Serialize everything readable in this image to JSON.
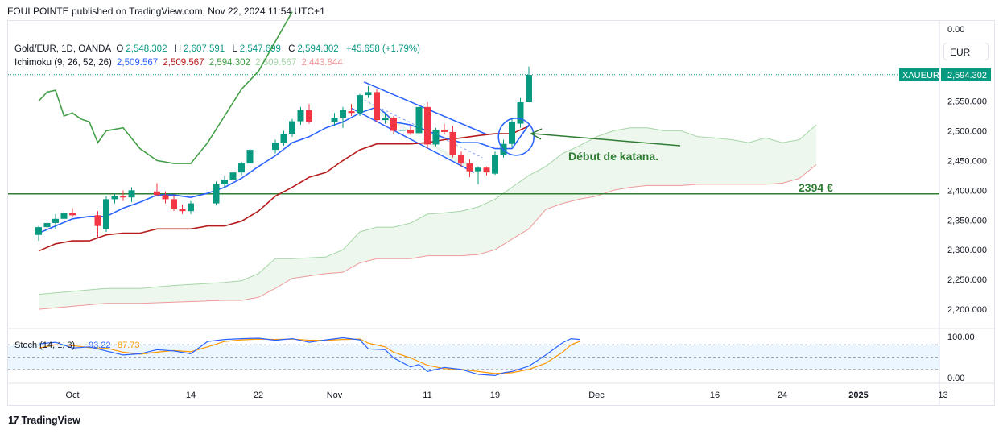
{
  "header": {
    "publisher_line": "FOULPOINTE published on TradingView.com, Nov 22, 2024 11:54 UTC+1"
  },
  "footer": {
    "logo_mark": "17",
    "brand": "TradingView"
  },
  "currency_button": "EUR",
  "legend": {
    "symbol_line": "Gold/EUR, 1D, OANDA",
    "ohlc": {
      "o_label": "O",
      "o": "2,548.302",
      "h_label": "H",
      "h": "2,607.591",
      "l_label": "L",
      "l": "2,547.699",
      "c_label": "C",
      "c": "2,594.302",
      "change": "+45.658 (+1.79%)"
    },
    "ichimoku_label": "Ichimoku (9, 26, 52, 26)",
    "ichimoku_values": [
      "2,509.567",
      "2,509.567",
      "2,594.302",
      "2,509.567",
      "2,443.844"
    ],
    "stoch_label": "Stoch (14, 1, 3)",
    "stoch_values": [
      "93.22",
      "87.73"
    ]
  },
  "colors": {
    "up": "#089981",
    "down": "#f23645",
    "tenkan": "#2962ff",
    "kijun": "#b71c1c",
    "chikou": "#43a047",
    "senkou_b": "#ef9a9a",
    "cloud": "#e8f5e9",
    "support": "#2e7d32",
    "stoch_k": "#2962ff",
    "stoch_d": "#ff9800",
    "annotation": "#2e7d32"
  },
  "annotations": {
    "katana_text": "Début de katana.",
    "support_text": "2394 €"
  },
  "chart_data": {
    "type": "candlestick",
    "symbol": "XAUEUR",
    "last_price_label": "XAUEUR",
    "last_price": "2,594.302",
    "y_ticks": [
      "2,550.000",
      "2,500.000",
      "2,450.000",
      "2,400.000",
      "2,350.000",
      "2,300.000",
      "2,250.000",
      "2,200.000"
    ],
    "y_top_label": "0.00",
    "y_tick_values": [
      2550,
      2500,
      2450,
      2400,
      2350,
      2300,
      2250,
      2200
    ],
    "x_ticks": [
      "Oct",
      "14",
      "22",
      "Nov",
      "11",
      "19",
      "Dec",
      "16",
      "24",
      "2025",
      "13"
    ],
    "x_tick_days": [
      18,
      32,
      40,
      49,
      60,
      68,
      80,
      94,
      102,
      111,
      121
    ],
    "support_level": 2394,
    "candles": [
      {
        "d": 14,
        "o": 2325,
        "h": 2340,
        "l": 2315,
        "c": 2338
      },
      {
        "d": 15,
        "o": 2338,
        "h": 2350,
        "l": 2330,
        "c": 2345
      },
      {
        "d": 16,
        "o": 2345,
        "h": 2360,
        "l": 2335,
        "c": 2352
      },
      {
        "d": 17,
        "o": 2352,
        "h": 2365,
        "l": 2348,
        "c": 2362
      },
      {
        "d": 18,
        "o": 2362,
        "h": 2370,
        "l": 2355,
        "c": 2358
      },
      {
        "d": 21,
        "o": 2358,
        "h": 2365,
        "l": 2320,
        "c": 2340
      },
      {
        "d": 22,
        "o": 2335,
        "h": 2390,
        "l": 2330,
        "c": 2385
      },
      {
        "d": 23,
        "o": 2385,
        "h": 2395,
        "l": 2378,
        "c": 2390
      },
      {
        "d": 24,
        "o": 2390,
        "h": 2400,
        "l": 2382,
        "c": 2388
      },
      {
        "d": 25,
        "o": 2388,
        "h": 2405,
        "l": 2380,
        "c": 2400
      },
      {
        "d": 28,
        "o": 2398,
        "h": 2412,
        "l": 2390,
        "c": 2392
      },
      {
        "d": 29,
        "o": 2392,
        "h": 2398,
        "l": 2378,
        "c": 2385
      },
      {
        "d": 30,
        "o": 2385,
        "h": 2392,
        "l": 2365,
        "c": 2368
      },
      {
        "d": 31,
        "o": 2368,
        "h": 2376,
        "l": 2360,
        "c": 2365
      },
      {
        "d": 32,
        "o": 2365,
        "h": 2382,
        "l": 2360,
        "c": 2378
      },
      {
        "d": 35,
        "o": 2378,
        "h": 2415,
        "l": 2375,
        "c": 2410
      },
      {
        "d": 36,
        "o": 2410,
        "h": 2425,
        "l": 2405,
        "c": 2418
      },
      {
        "d": 37,
        "o": 2418,
        "h": 2435,
        "l": 2410,
        "c": 2430
      },
      {
        "d": 38,
        "o": 2430,
        "h": 2448,
        "l": 2425,
        "c": 2445
      },
      {
        "d": 39,
        "o": 2445,
        "h": 2470,
        "l": 2442,
        "c": 2468
      },
      {
        "d": 42,
        "o": 2468,
        "h": 2485,
        "l": 2462,
        "c": 2480
      },
      {
        "d": 43,
        "o": 2480,
        "h": 2500,
        "l": 2475,
        "c": 2495
      },
      {
        "d": 44,
        "o": 2495,
        "h": 2520,
        "l": 2490,
        "c": 2516
      },
      {
        "d": 45,
        "o": 2516,
        "h": 2540,
        "l": 2510,
        "c": 2535
      },
      {
        "d": 46,
        "o": 2535,
        "h": 2545,
        "l": 2512,
        "c": 2515
      },
      {
        "d": 49,
        "o": 2515,
        "h": 2530,
        "l": 2508,
        "c": 2522
      },
      {
        "d": 50,
        "o": 2522,
        "h": 2540,
        "l": 2505,
        "c": 2535
      },
      {
        "d": 51,
        "o": 2533,
        "h": 2545,
        "l": 2525,
        "c": 2530
      },
      {
        "d": 52,
        "o": 2530,
        "h": 2562,
        "l": 2525,
        "c": 2560
      },
      {
        "d": 53,
        "o": 2560,
        "h": 2575,
        "l": 2555,
        "c": 2565
      },
      {
        "d": 54,
        "o": 2565,
        "h": 2570,
        "l": 2515,
        "c": 2518
      },
      {
        "d": 55,
        "o": 2518,
        "h": 2530,
        "l": 2512,
        "c": 2522
      },
      {
        "d": 56,
        "o": 2522,
        "h": 2525,
        "l": 2495,
        "c": 2500
      },
      {
        "d": 57,
        "o": 2500,
        "h": 2510,
        "l": 2495,
        "c": 2502
      },
      {
        "d": 58,
        "o": 2502,
        "h": 2508,
        "l": 2493,
        "c": 2496
      },
      {
        "d": 59,
        "o": 2496,
        "h": 2545,
        "l": 2490,
        "c": 2540
      },
      {
        "d": 60,
        "o": 2540,
        "h": 2548,
        "l": 2470,
        "c": 2477
      },
      {
        "d": 61,
        "o": 2477,
        "h": 2505,
        "l": 2474,
        "c": 2502
      },
      {
        "d": 62,
        "o": 2502,
        "h": 2512,
        "l": 2495,
        "c": 2498
      },
      {
        "d": 63,
        "o": 2498,
        "h": 2508,
        "l": 2455,
        "c": 2460
      },
      {
        "d": 64,
        "o": 2460,
        "h": 2465,
        "l": 2440,
        "c": 2445
      },
      {
        "d": 65,
        "o": 2445,
        "h": 2452,
        "l": 2422,
        "c": 2432
      },
      {
        "d": 66,
        "o": 2432,
        "h": 2440,
        "l": 2410,
        "c": 2438
      },
      {
        "d": 67,
        "o": 2438,
        "h": 2440,
        "l": 2425,
        "c": 2430
      },
      {
        "d": 68,
        "o": 2428,
        "h": 2465,
        "l": 2426,
        "c": 2460
      },
      {
        "d": 69,
        "o": 2460,
        "h": 2485,
        "l": 2455,
        "c": 2478
      },
      {
        "d": 70,
        "o": 2478,
        "h": 2520,
        "l": 2472,
        "c": 2515
      },
      {
        "d": 71,
        "o": 2512,
        "h": 2555,
        "l": 2505,
        "c": 2548
      },
      {
        "d": 72,
        "o": 2548,
        "h": 2608,
        "l": 2548,
        "c": 2594
      }
    ],
    "tenkan": [
      [
        14,
        2328
      ],
      [
        16,
        2340
      ],
      [
        18,
        2352
      ],
      [
        20,
        2356
      ],
      [
        22,
        2356
      ],
      [
        24,
        2370
      ],
      [
        26,
        2380
      ],
      [
        28,
        2392
      ],
      [
        30,
        2392
      ],
      [
        32,
        2388
      ],
      [
        34,
        2395
      ],
      [
        36,
        2405
      ],
      [
        38,
        2420
      ],
      [
        40,
        2440
      ],
      [
        42,
        2458
      ],
      [
        44,
        2480
      ],
      [
        46,
        2490
      ],
      [
        48,
        2505
      ],
      [
        50,
        2515
      ],
      [
        52,
        2530
      ],
      [
        54,
        2540
      ],
      [
        55,
        2530
      ],
      [
        56,
        2515
      ],
      [
        58,
        2510
      ],
      [
        60,
        2500
      ],
      [
        62,
        2488
      ],
      [
        64,
        2480
      ],
      [
        66,
        2480
      ],
      [
        68,
        2470
      ],
      [
        70,
        2470
      ],
      [
        71,
        2490
      ],
      [
        72,
        2510
      ]
    ],
    "kijun": [
      [
        14,
        2298
      ],
      [
        16,
        2310
      ],
      [
        18,
        2315
      ],
      [
        20,
        2315
      ],
      [
        22,
        2325
      ],
      [
        24,
        2328
      ],
      [
        26,
        2328
      ],
      [
        28,
        2335
      ],
      [
        30,
        2335
      ],
      [
        32,
        2335
      ],
      [
        34,
        2340
      ],
      [
        36,
        2340
      ],
      [
        38,
        2348
      ],
      [
        40,
        2365
      ],
      [
        42,
        2390
      ],
      [
        44,
        2405
      ],
      [
        46,
        2422
      ],
      [
        48,
        2430
      ],
      [
        50,
        2450
      ],
      [
        52,
        2468
      ],
      [
        54,
        2478
      ],
      [
        56,
        2478
      ],
      [
        58,
        2478
      ],
      [
        60,
        2480
      ],
      [
        62,
        2485
      ],
      [
        64,
        2488
      ],
      [
        66,
        2492
      ],
      [
        68,
        2495
      ],
      [
        70,
        2495
      ],
      [
        72,
        2508
      ]
    ],
    "chikou": [
      [
        14,
        2550
      ],
      [
        15,
        2565
      ],
      [
        16,
        2568
      ],
      [
        17,
        2525
      ],
      [
        18,
        2530
      ],
      [
        19,
        2520
      ],
      [
        20,
        2515
      ],
      [
        21,
        2480
      ],
      [
        22,
        2500
      ],
      [
        24,
        2505
      ],
      [
        26,
        2470
      ],
      [
        28,
        2450
      ],
      [
        30,
        2445
      ],
      [
        32,
        2445
      ],
      [
        34,
        2480
      ],
      [
        36,
        2525
      ],
      [
        38,
        2570
      ],
      [
        40,
        2600
      ],
      [
        42,
        2650
      ],
      [
        44,
        2700
      ]
    ],
    "senkou_a": [
      [
        14,
        2225
      ],
      [
        18,
        2230
      ],
      [
        22,
        2235
      ],
      [
        26,
        2235
      ],
      [
        30,
        2240
      ],
      [
        36,
        2245
      ],
      [
        38,
        2248
      ],
      [
        40,
        2260
      ],
      [
        42,
        2285
      ],
      [
        44,
        2285
      ],
      [
        48,
        2288
      ],
      [
        50,
        2300
      ],
      [
        52,
        2330
      ],
      [
        54,
        2338
      ],
      [
        56,
        2338
      ],
      [
        58,
        2345
      ],
      [
        60,
        2360
      ],
      [
        62,
        2362
      ],
      [
        64,
        2365
      ],
      [
        66,
        2372
      ],
      [
        68,
        2385
      ],
      [
        70,
        2405
      ],
      [
        72,
        2425
      ],
      [
        74,
        2440
      ],
      [
        76,
        2462
      ],
      [
        78,
        2475
      ],
      [
        80,
        2490
      ],
      [
        82,
        2500
      ],
      [
        84,
        2505
      ],
      [
        86,
        2505
      ],
      [
        88,
        2500
      ],
      [
        90,
        2500
      ],
      [
        92,
        2490
      ],
      [
        94,
        2488
      ],
      [
        96,
        2485
      ],
      [
        98,
        2480
      ],
      [
        100,
        2488
      ],
      [
        102,
        2480
      ],
      [
        104,
        2485
      ],
      [
        106,
        2510
      ]
    ],
    "senkou_b": [
      [
        14,
        2200
      ],
      [
        18,
        2205
      ],
      [
        22,
        2210
      ],
      [
        26,
        2210
      ],
      [
        30,
        2212
      ],
      [
        36,
        2215
      ],
      [
        38,
        2215
      ],
      [
        40,
        2220
      ],
      [
        42,
        2235
      ],
      [
        44,
        2252
      ],
      [
        48,
        2260
      ],
      [
        50,
        2262
      ],
      [
        52,
        2278
      ],
      [
        54,
        2285
      ],
      [
        56,
        2285
      ],
      [
        58,
        2285
      ],
      [
        60,
        2290
      ],
      [
        62,
        2290
      ],
      [
        64,
        2290
      ],
      [
        66,
        2292
      ],
      [
        68,
        2300
      ],
      [
        70,
        2318
      ],
      [
        72,
        2335
      ],
      [
        74,
        2368
      ],
      [
        76,
        2378
      ],
      [
        78,
        2385
      ],
      [
        80,
        2390
      ],
      [
        82,
        2400
      ],
      [
        84,
        2405
      ],
      [
        86,
        2408
      ],
      [
        88,
        2408
      ],
      [
        90,
        2408
      ],
      [
        92,
        2410
      ],
      [
        94,
        2410
      ],
      [
        96,
        2410
      ],
      [
        98,
        2410
      ],
      [
        100,
        2410
      ],
      [
        102,
        2412
      ],
      [
        104,
        2420
      ],
      [
        106,
        2443
      ]
    ],
    "stoch": {
      "upper_band": 80,
      "lower_band": 20,
      "mid_band": 50,
      "y_ticks": [
        "100.00",
        "0.00"
      ],
      "k": [
        [
          14,
          82
        ],
        [
          16,
          86
        ],
        [
          18,
          72
        ],
        [
          20,
          75
        ],
        [
          22,
          65
        ],
        [
          24,
          55
        ],
        [
          26,
          58
        ],
        [
          28,
          68
        ],
        [
          30,
          65
        ],
        [
          32,
          58
        ],
        [
          34,
          88
        ],
        [
          36,
          93
        ],
        [
          38,
          95
        ],
        [
          40,
          96
        ],
        [
          42,
          91
        ],
        [
          44,
          95
        ],
        [
          46,
          86
        ],
        [
          48,
          92
        ],
        [
          50,
          97
        ],
        [
          52,
          92
        ],
        [
          53,
          70
        ],
        [
          55,
          68
        ],
        [
          56,
          48
        ],
        [
          58,
          26
        ],
        [
          59,
          32
        ],
        [
          60,
          15
        ],
        [
          62,
          25
        ],
        [
          64,
          20
        ],
        [
          66,
          8
        ],
        [
          68,
          5
        ],
        [
          69,
          12
        ],
        [
          70,
          15
        ],
        [
          72,
          28
        ],
        [
          74,
          55
        ],
        [
          76,
          85
        ],
        [
          77,
          95
        ],
        [
          78,
          93
        ]
      ],
      "d": [
        [
          14,
          72
        ],
        [
          16,
          80
        ],
        [
          18,
          78
        ],
        [
          20,
          73
        ],
        [
          22,
          72
        ],
        [
          24,
          62
        ],
        [
          26,
          57
        ],
        [
          28,
          62
        ],
        [
          30,
          66
        ],
        [
          32,
          63
        ],
        [
          34,
          75
        ],
        [
          36,
          88
        ],
        [
          38,
          92
        ],
        [
          40,
          94
        ],
        [
          42,
          93
        ],
        [
          44,
          94
        ],
        [
          46,
          91
        ],
        [
          48,
          91
        ],
        [
          50,
          93
        ],
        [
          52,
          94
        ],
        [
          53,
          84
        ],
        [
          55,
          75
        ],
        [
          56,
          62
        ],
        [
          58,
          48
        ],
        [
          60,
          30
        ],
        [
          62,
          22
        ],
        [
          64,
          20
        ],
        [
          66,
          15
        ],
        [
          68,
          10
        ],
        [
          70,
          12
        ],
        [
          72,
          20
        ],
        [
          74,
          35
        ],
        [
          76,
          62
        ],
        [
          77,
          80
        ],
        [
          78,
          88
        ]
      ]
    }
  }
}
